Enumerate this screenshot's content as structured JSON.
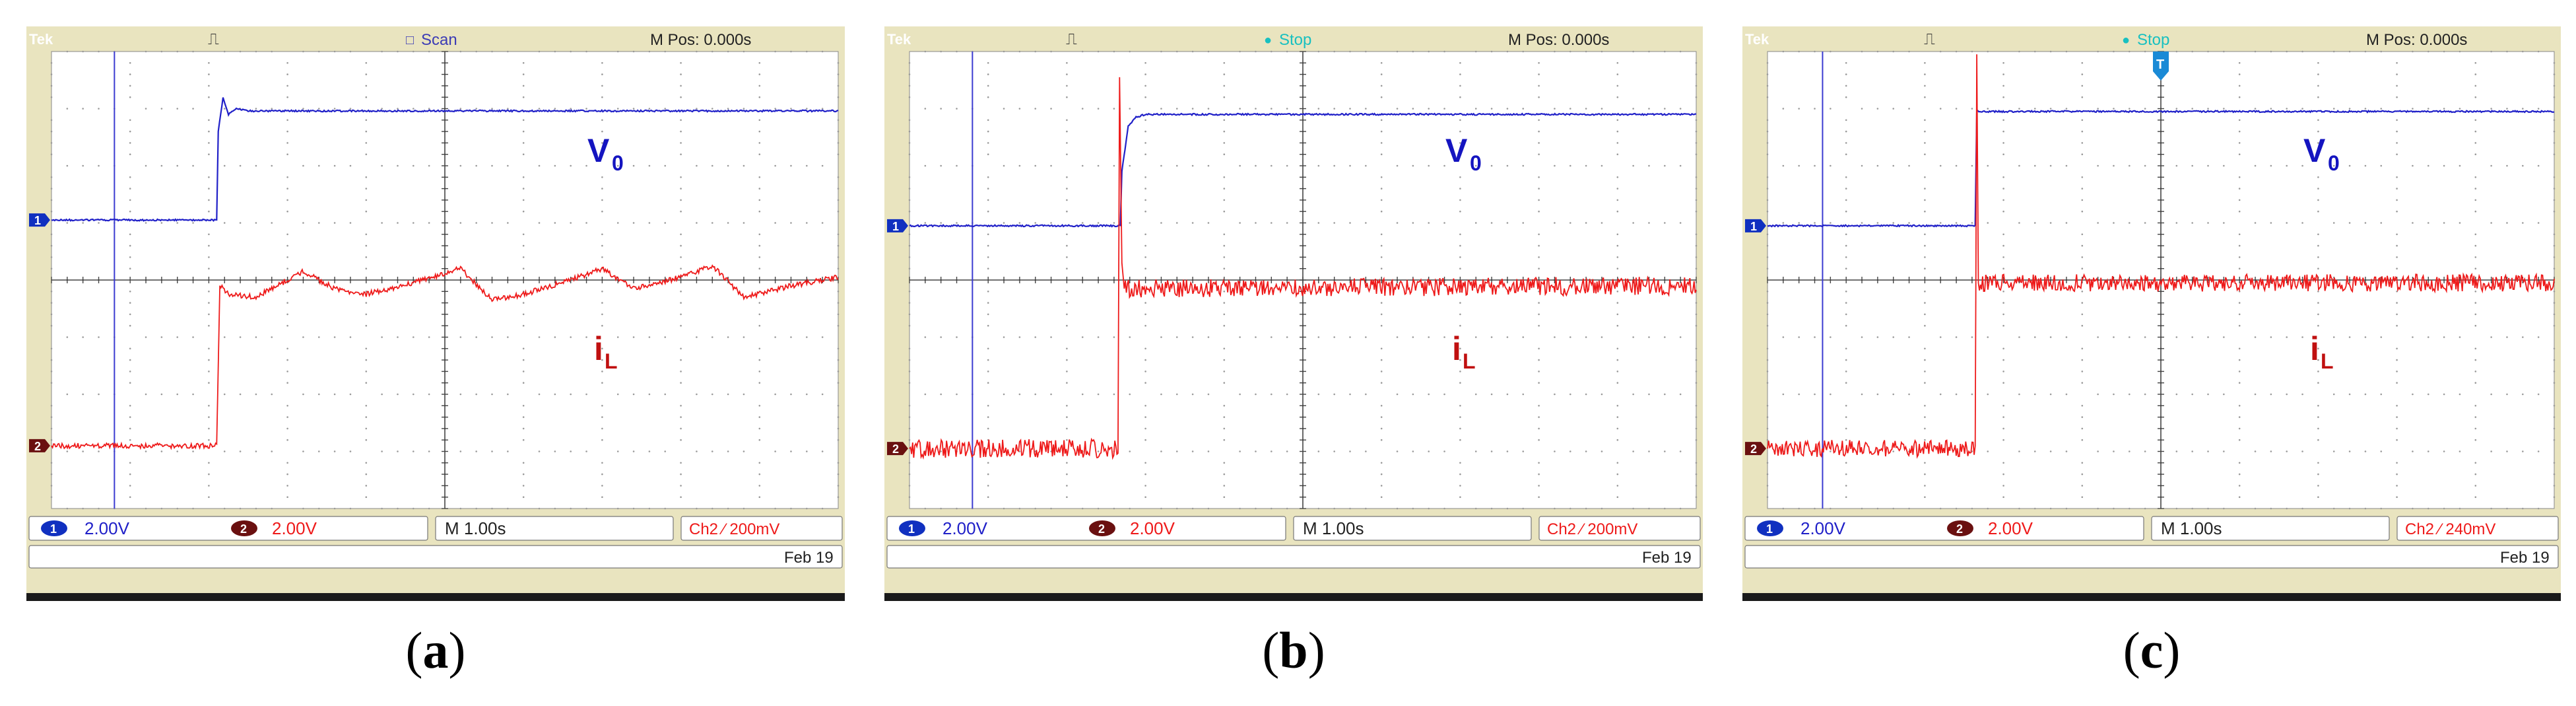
{
  "panels": [
    {
      "id": "a",
      "label": "a",
      "brand": "Tek",
      "trig_symbol": "⎍",
      "status": "Scan",
      "status_mark": "□",
      "status_color": "#3b3bb5",
      "mpos": "M Pos: 0.000s",
      "ch1_marker": "1",
      "ch2_marker": "2",
      "ch1_scale": "2.00V",
      "ch2_scale": "2.00V",
      "timebase": "M 1.00s",
      "trigger": "Ch2 ⁄ 200mV",
      "date": "Feb 19",
      "trace_v0_label": "V",
      "trace_v0_sub": "0",
      "trace_il_label": "i",
      "trace_il_sub": "L",
      "show_trigger_marker": false,
      "trigger_marker_text": ""
    },
    {
      "id": "b",
      "label": "b",
      "brand": "Tek",
      "trig_symbol": "⎍",
      "status": "Stop",
      "status_mark": "●",
      "status_color": "#18c0c0",
      "mpos": "M Pos: 0.000s",
      "ch1_marker": "1",
      "ch2_marker": "2",
      "ch1_scale": "2.00V",
      "ch2_scale": "2.00V",
      "timebase": "M 1.00s",
      "trigger": "Ch2 ⁄ 200mV",
      "date": "Feb 19",
      "trace_v0_label": "V",
      "trace_v0_sub": "0",
      "trace_il_label": "i",
      "trace_il_sub": "L",
      "show_trigger_marker": false,
      "trigger_marker_text": ""
    },
    {
      "id": "c",
      "label": "c",
      "brand": "Tek",
      "trig_symbol": "⎍",
      "status": "Stop",
      "status_mark": "●",
      "status_color": "#18c0c0",
      "mpos": "M Pos: 0.000s",
      "ch1_marker": "1",
      "ch2_marker": "2",
      "ch1_scale": "2.00V",
      "ch2_scale": "2.00V",
      "timebase": "M 1.00s",
      "trigger": "Ch2 ⁄ 240mV",
      "date": "Feb 19",
      "trace_v0_label": "V",
      "trace_v0_sub": "0",
      "trace_il_label": "i",
      "trace_il_sub": "L",
      "show_trigger_marker": true,
      "trigger_marker_text": "T"
    }
  ],
  "colors": {
    "frame": "#e9e4bf",
    "screen": "#ffffff",
    "grid": "#9a9a9a",
    "ch1": "#2020c8",
    "ch2": "#ee1a1a",
    "ch1_label": "#1414c0",
    "ch2_label": "#c01010",
    "ch2_badge": "#6a1010",
    "cursor": "#3a3ad0"
  },
  "chart_data": [
    {
      "type": "line",
      "panel": "a",
      "x_unit": "div",
      "y_unit": "div",
      "xlim": [
        0,
        10
      ],
      "ylim": [
        0,
        8
      ],
      "series": [
        {
          "x": [
            0,
            2.1,
            2.12,
            2.18,
            2.25,
            2.35,
            2.5,
            10
          ],
          "y": [
            5.05,
            5.05,
            6.6,
            7.2,
            6.9,
            7.0,
            6.96,
            6.96
          ]
        },
        {
          "x": [
            0,
            2.1,
            2.14,
            2.25,
            2.6,
            2.8,
            3.2,
            3.6,
            4.0,
            4.6,
            5.2,
            5.6,
            6.0,
            6.6,
            7.0,
            7.4,
            8.0,
            8.4,
            8.8,
            9.4,
            10
          ],
          "y": [
            1.1,
            1.1,
            3.9,
            3.75,
            3.7,
            3.85,
            4.15,
            3.85,
            3.75,
            3.95,
            4.2,
            3.65,
            3.75,
            4.0,
            4.2,
            3.85,
            4.05,
            4.25,
            3.7,
            3.9,
            4.05
          ]
        }
      ]
    },
    {
      "type": "line",
      "panel": "b",
      "x_unit": "div",
      "y_unit": "div",
      "xlim": [
        0,
        10
      ],
      "ylim": [
        0,
        8
      ],
      "series": [
        {
          "x": [
            0,
            2.68,
            2.7,
            2.78,
            2.88,
            3.0,
            10
          ],
          "y": [
            4.95,
            4.95,
            5.9,
            6.7,
            6.85,
            6.9,
            6.9
          ]
        },
        {
          "x": [
            0,
            2.65,
            2.67,
            2.7,
            2.73,
            10
          ],
          "y": [
            1.05,
            1.05,
            7.55,
            4.3,
            3.85,
            3.9
          ]
        }
      ]
    },
    {
      "type": "line",
      "panel": "c",
      "x_unit": "div",
      "y_unit": "div",
      "xlim": [
        0,
        10
      ],
      "ylim": [
        0,
        8
      ],
      "series": [
        {
          "x": [
            0,
            2.64,
            2.66,
            10
          ],
          "y": [
            4.95,
            4.95,
            6.95,
            6.95
          ]
        },
        {
          "x": [
            0,
            2.64,
            2.66,
            2.68,
            10
          ],
          "y": [
            1.05,
            1.05,
            7.95,
            3.95,
            3.95
          ]
        }
      ]
    }
  ]
}
